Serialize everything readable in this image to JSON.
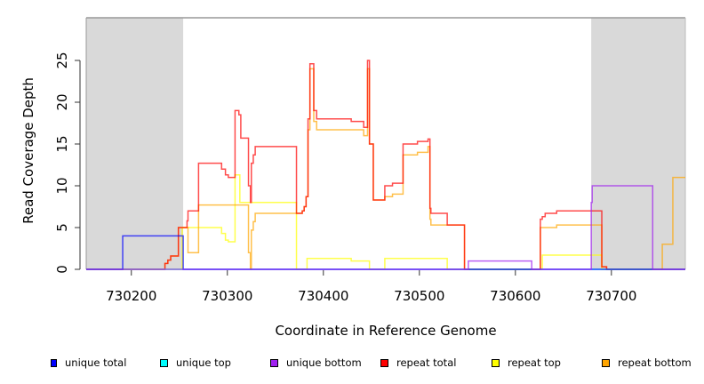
{
  "chart_data": {
    "type": "line",
    "xlabel": "Coordinate in Reference Genome",
    "ylabel": "Read Coverage Depth",
    "xlim": [
      730153,
      730777
    ],
    "ylim": [
      0,
      30
    ],
    "x_ticks": [
      730200,
      730300,
      730400,
      730500,
      730600,
      730700
    ],
    "x_tick_labels": [
      "730200",
      "730300",
      "730400",
      "730500",
      "730600",
      "730700"
    ],
    "y_ticks": [
      0,
      5,
      10,
      15,
      20,
      25
    ],
    "y_tick_labels": [
      "0",
      "5",
      "10",
      "15",
      "20",
      "25"
    ],
    "shaded_ranges": [
      [
        730153,
        730254
      ],
      [
        730679,
        730777
      ]
    ],
    "step": true,
    "series": [
      {
        "name": "repeat top",
        "color": "#ffff00",
        "points": [
          [
            730153,
            0
          ],
          [
            730253,
            5
          ],
          [
            730294,
            4.3
          ],
          [
            730298,
            3.5
          ],
          [
            730301,
            3.3
          ],
          [
            730308,
            11.3
          ],
          [
            730313,
            8
          ],
          [
            730372,
            0
          ],
          [
            730383,
            1.3
          ],
          [
            730429,
            1
          ],
          [
            730448,
            0
          ],
          [
            730464,
            1.3
          ],
          [
            730529,
            0
          ],
          [
            730628,
            1.7
          ],
          [
            730690,
            0
          ],
          [
            730777,
            0
          ]
        ]
      },
      {
        "name": "repeat bottom",
        "color": "#ffa500",
        "points": [
          [
            730153,
            0
          ],
          [
            730235,
            0.7
          ],
          [
            730238,
            1.1
          ],
          [
            730241,
            1.6
          ],
          [
            730249,
            5
          ],
          [
            730259,
            2
          ],
          [
            730270,
            7.7
          ],
          [
            730322,
            2
          ],
          [
            730324,
            0
          ],
          [
            730325,
            4.7
          ],
          [
            730327,
            5.7
          ],
          [
            730329,
            6.7
          ],
          [
            730372,
            6.7
          ],
          [
            730378,
            7
          ],
          [
            730380,
            7.5
          ],
          [
            730382,
            8.7
          ],
          [
            730384,
            16.7
          ],
          [
            730386,
            24
          ],
          [
            730390,
            17.7
          ],
          [
            730393,
            16.7
          ],
          [
            730442,
            16
          ],
          [
            730446,
            24
          ],
          [
            730448,
            15
          ],
          [
            730452,
            8.3
          ],
          [
            730464,
            8.7
          ],
          [
            730472,
            9
          ],
          [
            730483,
            13.7
          ],
          [
            730498,
            14
          ],
          [
            730509,
            14.7
          ],
          [
            730511,
            6
          ],
          [
            730512,
            5.3
          ],
          [
            730547,
            0
          ],
          [
            730626,
            5
          ],
          [
            730643,
            5.3
          ],
          [
            730690,
            0.3
          ],
          [
            730695,
            0
          ],
          [
            730753,
            3
          ],
          [
            730764,
            11
          ],
          [
            730777,
            11
          ]
        ]
      },
      {
        "name": "repeat total",
        "color": "#ff0000",
        "points": [
          [
            730153,
            0
          ],
          [
            730235,
            0.7
          ],
          [
            730238,
            1.1
          ],
          [
            730241,
            1.6
          ],
          [
            730249,
            5
          ],
          [
            730258,
            5.8
          ],
          [
            730259,
            7
          ],
          [
            730270,
            12.7
          ],
          [
            730294,
            12
          ],
          [
            730298,
            11.3
          ],
          [
            730301,
            11
          ],
          [
            730308,
            19
          ],
          [
            730312,
            18.5
          ],
          [
            730314,
            15.7
          ],
          [
            730322,
            10
          ],
          [
            730324,
            8
          ],
          [
            730325,
            12.7
          ],
          [
            730327,
            13.7
          ],
          [
            730329,
            14.7
          ],
          [
            730372,
            6.7
          ],
          [
            730378,
            7
          ],
          [
            730380,
            7.5
          ],
          [
            730382,
            8.7
          ],
          [
            730384,
            18
          ],
          [
            730386,
            24.6
          ],
          [
            730390,
            19
          ],
          [
            730393,
            18
          ],
          [
            730429,
            17.7
          ],
          [
            730442,
            17
          ],
          [
            730446,
            25
          ],
          [
            730448,
            15
          ],
          [
            730452,
            8.3
          ],
          [
            730464,
            10
          ],
          [
            730472,
            10.3
          ],
          [
            730483,
            15
          ],
          [
            730498,
            15.3
          ],
          [
            730509,
            15.6
          ],
          [
            730511,
            7.3
          ],
          [
            730512,
            6.7
          ],
          [
            730529,
            5.3
          ],
          [
            730547,
            0
          ],
          [
            730626,
            6
          ],
          [
            730628,
            6.3
          ],
          [
            730631,
            6.7
          ],
          [
            730643,
            7
          ],
          [
            730690,
            0.3
          ],
          [
            730695,
            0
          ],
          [
            730777,
            0
          ]
        ]
      },
      {
        "name": "unique top",
        "color": "#00ffff",
        "points": [
          [
            730153,
            0
          ],
          [
            730777,
            0
          ]
        ]
      },
      {
        "name": "unique total",
        "color": "#0000ff",
        "points": [
          [
            730153,
            0
          ],
          [
            730191,
            4
          ],
          [
            730254,
            0
          ],
          [
            730777,
            0
          ]
        ]
      },
      {
        "name": "unique bottom",
        "color": "#a020f0",
        "points": [
          [
            730153,
            0
          ],
          [
            730551,
            1
          ],
          [
            730617,
            0
          ],
          [
            730679,
            8
          ],
          [
            730680,
            10
          ],
          [
            730743,
            0
          ],
          [
            730777,
            0
          ]
        ]
      }
    ],
    "legend": [
      {
        "label": "unique total",
        "color": "#0000ff"
      },
      {
        "label": "unique top",
        "color": "#00ffff"
      },
      {
        "label": "unique bottom",
        "color": "#a020f0"
      },
      {
        "label": "repeat total",
        "color": "#ff0000"
      },
      {
        "label": "repeat top",
        "color": "#ffff00"
      },
      {
        "label": "repeat bottom",
        "color": "#ffa500"
      }
    ],
    "legend_position": "bottom"
  }
}
